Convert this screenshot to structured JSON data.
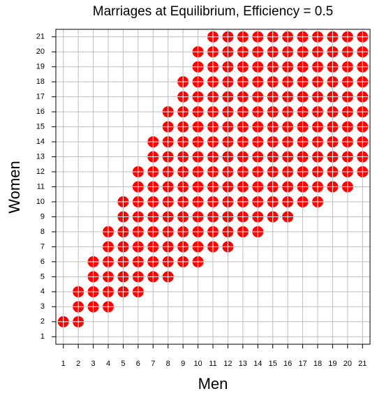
{
  "chart_data": {
    "type": "scatter",
    "title": "Marriages at Equilibrium, Efficiency = 0.5",
    "x_label": "Men",
    "y_label": "Women",
    "color": "#ff0000",
    "xlim": [
      0.5,
      21.5
    ],
    "ylim": [
      0.5,
      21.5
    ],
    "xticks": [
      1,
      2,
      3,
      4,
      5,
      6,
      7,
      8,
      9,
      10,
      11,
      12,
      13,
      14,
      15,
      16,
      17,
      18,
      19,
      20,
      21
    ],
    "yticks": [
      1,
      2,
      3,
      4,
      5,
      6,
      7,
      8,
      9,
      10,
      11,
      12,
      13,
      14,
      15,
      16,
      17,
      18,
      19,
      20,
      21
    ],
    "grid": true,
    "x": [
      1,
      2,
      2,
      2,
      3,
      3,
      3,
      3,
      4,
      4,
      4,
      4,
      4,
      4,
      5,
      5,
      5,
      5,
      5,
      5,
      5,
      6,
      6,
      6,
      6,
      6,
      6,
      6,
      6,
      6,
      7,
      7,
      7,
      7,
      7,
      7,
      7,
      7,
      7,
      7,
      8,
      8,
      8,
      8,
      8,
      8,
      8,
      8,
      8,
      8,
      8,
      8,
      9,
      9,
      9,
      9,
      9,
      9,
      9,
      9,
      9,
      9,
      9,
      9,
      9,
      10,
      10,
      10,
      10,
      10,
      10,
      10,
      10,
      10,
      10,
      10,
      10,
      10,
      10,
      10,
      11,
      11,
      11,
      11,
      11,
      11,
      11,
      11,
      11,
      11,
      11,
      11,
      11,
      11,
      11,
      12,
      12,
      12,
      12,
      12,
      12,
      12,
      12,
      12,
      12,
      12,
      12,
      12,
      12,
      12,
      13,
      13,
      13,
      13,
      13,
      13,
      13,
      13,
      13,
      13,
      13,
      13,
      13,
      13,
      14,
      14,
      14,
      14,
      14,
      14,
      14,
      14,
      14,
      14,
      14,
      14,
      14,
      14,
      15,
      15,
      15,
      15,
      15,
      15,
      15,
      15,
      15,
      15,
      15,
      15,
      15,
      16,
      16,
      16,
      16,
      16,
      16,
      16,
      16,
      16,
      16,
      16,
      16,
      16,
      17,
      17,
      17,
      17,
      17,
      17,
      17,
      17,
      17,
      17,
      17,
      17,
      18,
      18,
      18,
      18,
      18,
      18,
      18,
      18,
      18,
      18,
      18,
      18,
      19,
      19,
      19,
      19,
      19,
      19,
      19,
      19,
      19,
      19,
      19,
      20,
      20,
      20,
      20,
      20,
      20,
      20,
      20,
      20,
      20,
      20,
      21,
      21,
      21,
      21,
      21,
      21,
      21,
      21,
      21,
      21
    ],
    "y": [
      2,
      2,
      3,
      4,
      3,
      4,
      5,
      6,
      3,
      4,
      5,
      6,
      7,
      8,
      4,
      5,
      6,
      7,
      8,
      9,
      10,
      4,
      5,
      6,
      7,
      8,
      9,
      10,
      11,
      12,
      5,
      6,
      7,
      8,
      9,
      10,
      11,
      12,
      13,
      14,
      5,
      6,
      7,
      8,
      9,
      10,
      11,
      12,
      13,
      14,
      15,
      16,
      6,
      7,
      8,
      9,
      10,
      11,
      12,
      13,
      14,
      15,
      16,
      17,
      18,
      6,
      7,
      8,
      9,
      10,
      11,
      12,
      13,
      14,
      15,
      16,
      17,
      18,
      19,
      20,
      7,
      8,
      9,
      10,
      11,
      12,
      13,
      14,
      15,
      16,
      17,
      18,
      19,
      20,
      21,
      7,
      8,
      9,
      10,
      11,
      12,
      13,
      14,
      15,
      16,
      17,
      18,
      19,
      20,
      21,
      8,
      9,
      10,
      11,
      12,
      13,
      14,
      15,
      16,
      17,
      18,
      19,
      20,
      21,
      8,
      9,
      10,
      11,
      12,
      13,
      14,
      15,
      16,
      17,
      18,
      19,
      20,
      21,
      9,
      10,
      11,
      12,
      13,
      14,
      15,
      16,
      17,
      18,
      19,
      20,
      21,
      9,
      10,
      11,
      12,
      13,
      14,
      15,
      16,
      17,
      18,
      19,
      20,
      21,
      10,
      11,
      12,
      13,
      14,
      15,
      16,
      17,
      18,
      19,
      20,
      21,
      10,
      11,
      12,
      13,
      14,
      15,
      16,
      17,
      18,
      19,
      20,
      21,
      11,
      12,
      13,
      14,
      15,
      16,
      17,
      18,
      19,
      20,
      21,
      11,
      12,
      13,
      14,
      15,
      16,
      17,
      18,
      19,
      20,
      21,
      12,
      13,
      14,
      15,
      16,
      17,
      18,
      19,
      20,
      21
    ]
  }
}
